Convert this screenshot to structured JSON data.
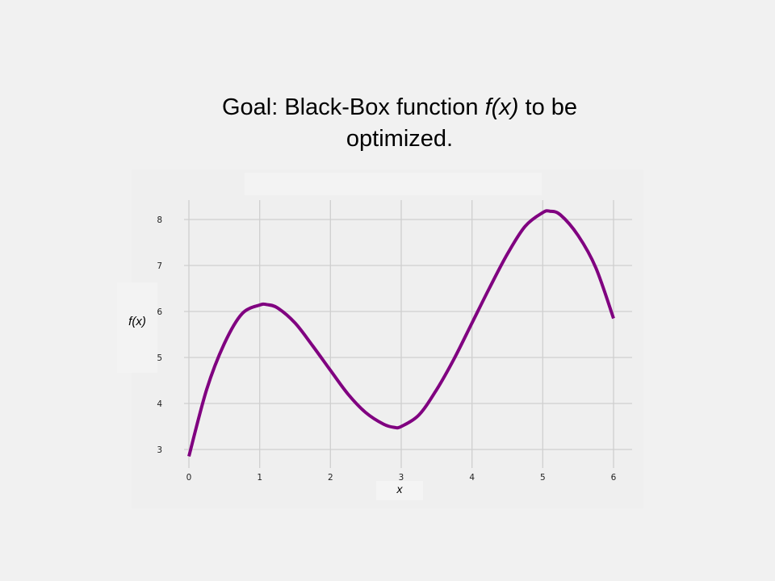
{
  "slide": {
    "title_pre": "Goal: Black-Box function ",
    "title_fx": "f(x)",
    "title_post": " to be optimized."
  },
  "chart_data": {
    "type": "line",
    "xlabel": "x",
    "ylabel": "f(x)",
    "xlim": [
      0,
      6
    ],
    "ylim": [
      2.6,
      8.4
    ],
    "xticks": [
      0,
      1,
      2,
      3,
      4,
      5,
      6
    ],
    "yticks": [
      3,
      4,
      5,
      6,
      7,
      8
    ],
    "grid": true,
    "legend": "none",
    "series": [
      {
        "color": "#800080",
        "x": [
          0,
          0.25,
          0.5,
          0.75,
          1.0,
          1.1,
          1.25,
          1.5,
          1.75,
          2.0,
          2.25,
          2.5,
          2.75,
          2.9,
          3.0,
          3.25,
          3.5,
          3.75,
          4.0,
          4.25,
          4.5,
          4.75,
          5.0,
          5.1,
          5.25,
          5.5,
          5.75,
          6.0
        ],
        "y": [
          2.85,
          4.3,
          5.3,
          5.95,
          6.14,
          6.15,
          6.08,
          5.75,
          5.25,
          4.72,
          4.2,
          3.8,
          3.55,
          3.48,
          3.5,
          3.75,
          4.3,
          4.98,
          5.75,
          6.52,
          7.25,
          7.85,
          8.15,
          8.18,
          8.1,
          7.65,
          6.95,
          5.85
        ]
      }
    ]
  }
}
